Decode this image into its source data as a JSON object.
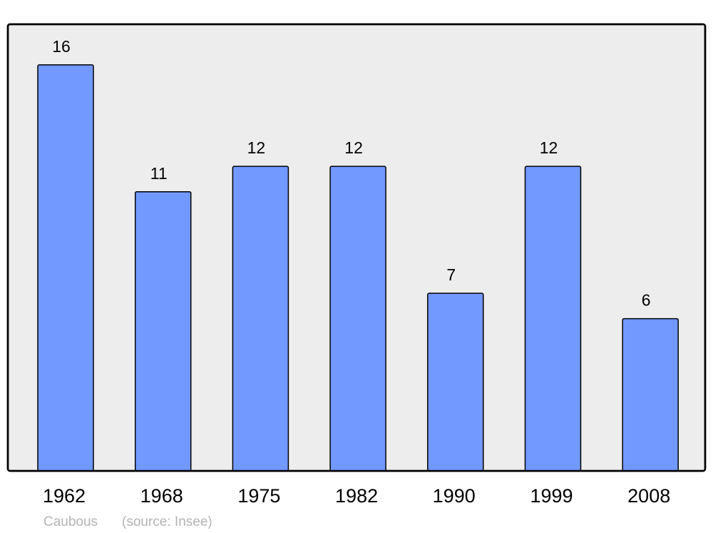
{
  "chart_data": {
    "type": "bar",
    "categories": [
      "1962",
      "1968",
      "1975",
      "1982",
      "1990",
      "1999",
      "2008"
    ],
    "values": [
      16,
      11,
      12,
      12,
      7,
      12,
      6
    ],
    "title": "",
    "xlabel": "",
    "ylabel": "",
    "ylim": [
      0,
      17.6
    ],
    "grid": false,
    "data_labels": true,
    "colors": {
      "bar": "#7299ff",
      "background": "#ededed",
      "border": "#000000",
      "caption": "#b3b3b3"
    }
  },
  "caption": {
    "place": "Caubous",
    "source": "(source: Insee)"
  }
}
